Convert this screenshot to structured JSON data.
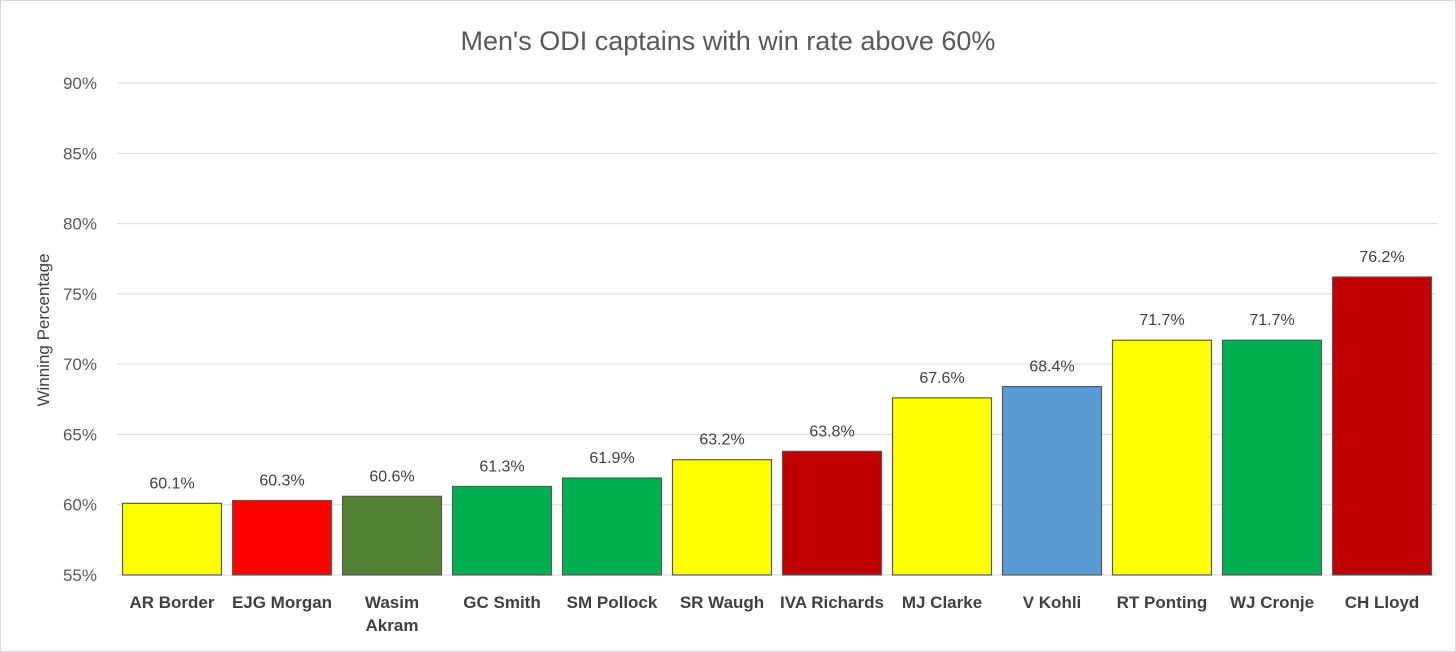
{
  "chart_data": {
    "type": "bar",
    "title": "Men's ODI captains with win rate above 60%",
    "xlabel": "",
    "ylabel": "Winning Percentage",
    "ylim": [
      55,
      90
    ],
    "yticks": [
      55,
      60,
      65,
      70,
      75,
      80,
      85,
      90
    ],
    "ytick_format": "%",
    "grid": true,
    "legend": "none",
    "categories": [
      "AR Border",
      "EJG Morgan",
      "Wasim Akram",
      "GC Smith",
      "SM Pollock",
      "SR Waugh",
      "IVA Richards",
      "MJ Clarke",
      "V Kohli",
      "RT Ponting",
      "WJ Cronje",
      "CH Lloyd"
    ],
    "category_lines": [
      [
        "AR Border"
      ],
      [
        "EJG Morgan"
      ],
      [
        "Wasim",
        "Akram"
      ],
      [
        "GC Smith"
      ],
      [
        "SM Pollock"
      ],
      [
        "SR Waugh"
      ],
      [
        "IVA Richards"
      ],
      [
        "MJ Clarke"
      ],
      [
        "V Kohli"
      ],
      [
        "RT Ponting"
      ],
      [
        "WJ Cronje"
      ],
      [
        "CH Lloyd"
      ]
    ],
    "values": [
      60.1,
      60.3,
      60.6,
      61.3,
      61.9,
      63.2,
      63.8,
      67.6,
      68.4,
      71.7,
      71.7,
      76.2
    ],
    "data_labels": [
      "60.1%",
      "60.3%",
      "60.6%",
      "61.3%",
      "61.9%",
      "63.2%",
      "63.8%",
      "67.6%",
      "68.4%",
      "71.7%",
      "71.7%",
      "76.2%"
    ],
    "colors": [
      "#ffff00",
      "#ff0000",
      "#548235",
      "#00b050",
      "#00b050",
      "#ffff00",
      "#c00000",
      "#ffff00",
      "#5b9bd5",
      "#ffff00",
      "#00b050",
      "#c00000"
    ]
  }
}
